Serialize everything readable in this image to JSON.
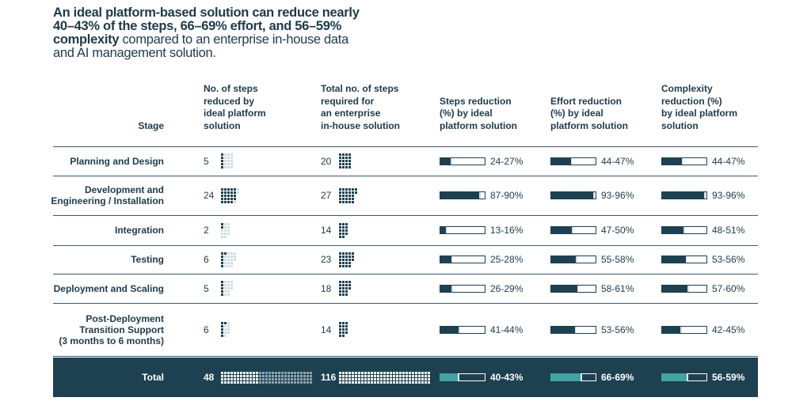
{
  "title": {
    "bold": "An ideal platform-based solution can reduce nearly 40–43% of the steps, 66–69% effort, and 56–59% complexity",
    "regular": " compared to an enterprise in-house data and AI management solution."
  },
  "table": {
    "headers": [
      [
        "Stage"
      ],
      [
        "No. of steps",
        "reduced by",
        "ideal platform",
        "solution"
      ],
      [
        "Total no. of steps",
        "required for",
        "an enterprise",
        "in-house solution"
      ],
      [
        "Steps reduction",
        "(%) by ideal",
        "platform solution"
      ],
      [
        "Effort reduction",
        "(%) by ideal",
        "platform solution"
      ],
      [
        "Complexity",
        "reduction (%)",
        "by ideal platform",
        "solution"
      ]
    ],
    "rows": [
      [
        [
          "Planning and Design"
        ],
        5,
        20,
        "24-27%",
        "44-47%",
        "44-47%"
      ],
      [
        [
          "Development and",
          "Engineering / Installation"
        ],
        24,
        27,
        "87-90%",
        "93-96%",
        "93-96%"
      ],
      [
        [
          "Integration"
        ],
        2,
        14,
        "13-16%",
        "47-50%",
        "48-51%"
      ],
      [
        [
          "Testing"
        ],
        6,
        23,
        "25-28%",
        "55-58%",
        "53-56%"
      ],
      [
        [
          "Deployment and Scaling"
        ],
        5,
        18,
        "26-29%",
        "58-61%",
        "57-60%"
      ],
      [
        [
          "Post-Deployment",
          "Transition Support",
          "(3 months to 6 months)"
        ],
        6,
        14,
        "41-44%",
        "53-56%",
        "42-45%"
      ]
    ],
    "total": [
      [
        "Total"
      ],
      48,
      116,
      "40-43%",
      "66-69%",
      "56-59%"
    ]
  }
}
